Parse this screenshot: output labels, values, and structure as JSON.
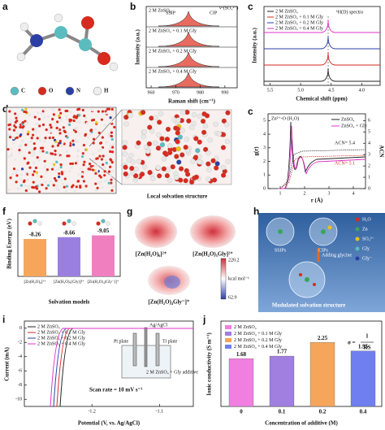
{
  "a": {
    "label": "a",
    "atoms": [
      "C",
      "O",
      "N",
      "H"
    ],
    "colors": [
      "#5bbcc0",
      "#d62b1f",
      "#2b3fa5",
      "#eeeeee"
    ]
  },
  "b": {
    "label": "b",
    "traces": [
      "2 M ZnSO₄",
      "2 M ZnSO₄ + 0.1 M Gly",
      "2 M ZnSO₄ + 0.2 M Gly",
      "2 M ZnSO₄ + 0.4 M Gly"
    ],
    "ssip": "SSIP",
    "cip": "CIP",
    "mode": "ν-(SO₄²⁻)",
    "xlabel": "Raman shift (cm⁻¹)",
    "ylabel": "Intensity (a.u.)",
    "xlim": [
      958,
      995
    ],
    "xticks": [
      960,
      970,
      980,
      990
    ]
  },
  "c1": {
    "label": "c",
    "title": "¹H(D) spectra",
    "legend": [
      "2 M ZnSO₄",
      "2 M ZnSO₄ + 0.1 M Gly",
      "2 M ZnSO₄ + 0.2 M Gly",
      "2 M ZnSO₄ + 0.4 M Gly"
    ],
    "colors": [
      "#222222",
      "#d62b1f",
      "#2b3fa5",
      "#e033c8"
    ],
    "xlabel": "Chemical shift (ppm)",
    "ylabel": "Intensity (a.u.)",
    "xlim": [
      5.6,
      3.7
    ],
    "xticks": [
      {
        "value": 5.5,
        "label": "5.5"
      },
      {
        "value": 5,
        "label": "5.0"
      },
      {
        "value": 4.5,
        "label": "4.5"
      },
      {
        "value": 4,
        "label": "4.0"
      }
    ]
  },
  "d": {
    "label": "d",
    "caption": "Local solvation structure"
  },
  "c2": {
    "label": "c",
    "title": "Zn²⁺-O (H₂O)",
    "legend": [
      "ZnSO₄",
      "ZnSO₄ + Gly"
    ],
    "colors": [
      "#222222",
      "#e033c8"
    ],
    "acn1": "ACN= 5.4",
    "acn2": "ACN= 5.1",
    "xlabel": "r (Å)",
    "ylabel": "g(r)",
    "y2label": "ACN",
    "xlim": [
      0.5,
      4.5
    ],
    "xticks": [
      1,
      2,
      3,
      4
    ],
    "ylim": [
      0,
      5.5
    ],
    "yticks": [
      0,
      1,
      2,
      3,
      4,
      5
    ],
    "y2lim": [
      0,
      6.6
    ],
    "y2ticks": [
      0,
      1,
      2,
      3,
      4,
      5,
      6
    ]
  },
  "f": {
    "label": "f",
    "categories": [
      "[Zn(H₂O)₆]²⁺",
      "[Zn(H₂O)₅(Gly)]²⁺",
      "[Zn(H₂O)₄(Gly⁻)]⁺"
    ],
    "values": [
      -8.26,
      -8.66,
      -9.05
    ],
    "colors": [
      "#f5a65b",
      "#9b7fe0",
      "#f07fbf"
    ],
    "ylim": [
      0,
      -14
    ],
    "ylabel": "Binding Energy (eV)",
    "xlabel": "Solvation models"
  },
  "g": {
    "label": "g",
    "names": [
      "[Zn(H₂O)₆]²⁺",
      "[Zn(H₂O)₅Gly]²⁺",
      "[Zn(H₂O)₄Gly⁻]⁺"
    ],
    "max": "220.2",
    "min": "62.9",
    "unit": "kcal mol⁻¹"
  },
  "h": {
    "label": "h",
    "ssip": "SSIPs",
    "cip": "CIPs",
    "adding": "Adding glycine",
    "caption": "Modulated solvation structure",
    "legend": [
      "H₂O",
      "Zn",
      "SO₄²⁻",
      "Gly",
      "Gly⁻"
    ]
  },
  "i": {
    "label": "i",
    "legend": [
      "2 M ZnSO₄",
      "2 M ZnSO₄ + 0.1 M Gly",
      "2 M ZnSO₄ + 0.2 M Gly",
      "2 M ZnSO₄ + 0.4 M Gly"
    ],
    "colors": [
      "#222222",
      "#d62b1f",
      "#2b3fa5",
      "#e033c8"
    ],
    "scan": "Scan rate = 10 mV s⁻¹",
    "ref": "Ag/AgCl",
    "pt": "Pt plate",
    "ti": "Ti plate",
    "sol": "2 M ZnSO₄ + Gly additive",
    "xlabel": "Potential (V, vs. Ag/AgCl)",
    "ylabel": "Current (mA)",
    "xlim": [
      -1.3,
      -1.05
    ],
    "xticks": [
      -1.2,
      -1.1
    ],
    "ylim": [
      -11,
      1
    ],
    "yticks": [
      0,
      -2,
      -4,
      -6,
      -8,
      -10
    ]
  },
  "j": {
    "label": "j",
    "categories": [
      "0",
      "0.1",
      "0.2",
      "0.4"
    ],
    "values": [
      1.68,
      1.77,
      2.25,
      1.95
    ],
    "legend": [
      "2 M ZnSO₄",
      "2 M ZnSO₄ + 0.1 M Gly",
      "2 M ZnSO₄ + 0.2 M Gly",
      "2 M ZnSO₄ + 0.4 M Gly"
    ],
    "colors": [
      "#f07fe0",
      "#a07fe0",
      "#f5a65b",
      "#6f7ff0"
    ],
    "ylim": [
      0,
      3
    ],
    "sigma": "σ =",
    "num": "l",
    "den": "RS",
    "ylabel": "Ionic conductivity (S m⁻¹)",
    "xlabel": "Concentration of additive (M)"
  }
}
